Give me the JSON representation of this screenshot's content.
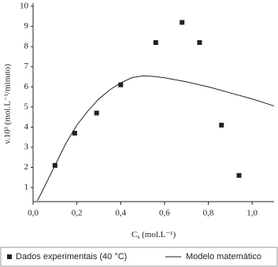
{
  "chart_data": {
    "type": "scatter",
    "ylabel": "v.10³ (mol.L⁻¹/minuto)",
    "xlabel": [
      "C",
      "s",
      " (mol.L⁻¹)"
    ],
    "xlim": [
      0,
      1.1
    ],
    "ylim": [
      0.3,
      10
    ],
    "xticks": [
      {
        "value": 0,
        "label": "0,0"
      },
      {
        "value": 0.2,
        "label": "0,2"
      },
      {
        "value": 0.4,
        "label": "0,4"
      },
      {
        "value": 0.6,
        "label": "0,6"
      },
      {
        "value": 0.8,
        "label": "0,8"
      },
      {
        "value": 1.0,
        "label": "1,0"
      }
    ],
    "yticks": [
      1,
      2,
      3,
      4,
      5,
      6,
      7,
      8,
      9,
      10
    ],
    "series": [
      {
        "name": "Dados experimentais (40 °C)",
        "type": "scatter",
        "color": "#222222",
        "x": [
          0.1,
          0.19,
          0.29,
          0.4,
          0.56,
          0.68,
          0.76,
          0.86,
          0.94
        ],
        "values": [
          2.1,
          3.7,
          4.7,
          6.1,
          8.2,
          9.2,
          8.2,
          4.1,
          1.6
        ]
      },
      {
        "name": "Modelo matemático",
        "type": "line",
        "color": "#222222",
        "x": [
          0.02,
          0.05,
          0.1,
          0.15,
          0.2,
          0.25,
          0.3,
          0.35,
          0.4,
          0.45,
          0.5,
          0.55,
          0.6,
          0.7,
          0.8,
          0.9,
          1.0,
          1.1
        ],
        "values": [
          0.35,
          1.0,
          2.1,
          3.2,
          4.1,
          4.8,
          5.4,
          5.85,
          6.2,
          6.45,
          6.55,
          6.52,
          6.45,
          6.25,
          6.0,
          5.7,
          5.4,
          5.05
        ]
      }
    ]
  }
}
